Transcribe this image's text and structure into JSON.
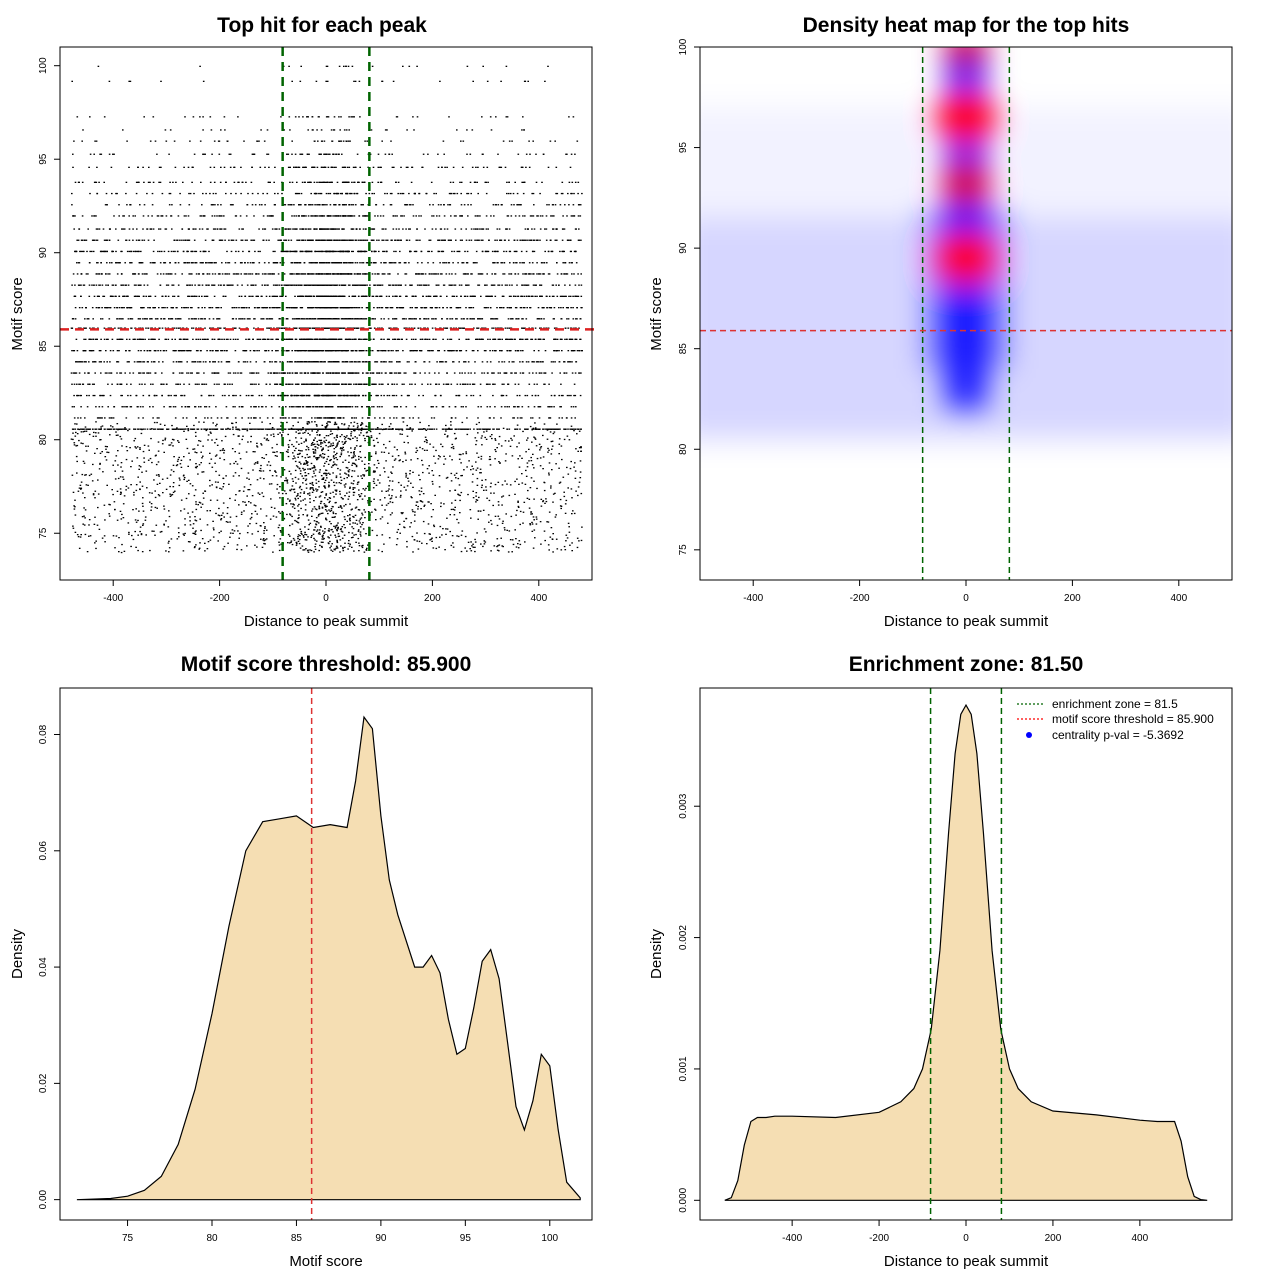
{
  "chart_data": [
    {
      "id": "scatter",
      "type": "scatter",
      "title": "Top hit for each peak",
      "xlabel": "Distance to peak summit",
      "ylabel": "Motif score",
      "xlim": [
        -500,
        500
      ],
      "ylim": [
        72.5,
        101
      ],
      "xticks": [
        -400,
        -200,
        0,
        200,
        400
      ],
      "yticks": [
        75,
        80,
        85,
        90,
        95,
        100
      ],
      "xtick_labels": [
        "-400",
        "-200",
        "0",
        "200",
        "400"
      ],
      "ytick_labels": [
        "75",
        "80",
        "85",
        "90",
        "95",
        "100"
      ],
      "enrichment_zone": [
        -81.5,
        81.5
      ],
      "threshold": 85.9,
      "point_model": {
        "score_bands": [
          100,
          99.2,
          97.3,
          96.6,
          96.0,
          95.3,
          94.6,
          93.8,
          93.2,
          92.6,
          92.0,
          91.3,
          90.7,
          90.1,
          89.5,
          88.9,
          88.3,
          87.7,
          87.1,
          86.5,
          86.0,
          85.4,
          84.8,
          84.2,
          83.6,
          83.0,
          82.4,
          81.8,
          81.2,
          80.6
        ],
        "background_n": 6500,
        "central_n": 2500,
        "central_sd_bp": 45,
        "score_mean": 87,
        "score_sd": 4.5,
        "x_range": [
          -480,
          480
        ]
      }
    },
    {
      "id": "heatmap",
      "type": "heatmap",
      "title": "Density heat map for the top hits",
      "xlabel": "Distance to peak summit",
      "ylabel": "Motif score",
      "xlim": [
        -500,
        500
      ],
      "ylim": [
        73.5,
        100
      ],
      "xticks": [
        -400,
        -200,
        0,
        200,
        400
      ],
      "yticks": [
        75,
        80,
        85,
        90,
        95,
        100
      ],
      "xtick_labels": [
        "-400",
        "-200",
        "0",
        "200",
        "400"
      ],
      "ytick_labels": [
        "75",
        "80",
        "85",
        "90",
        "95",
        "100"
      ],
      "enrichment_zone": [
        -81.5,
        81.5
      ],
      "threshold": 85.9,
      "hotspots": [
        {
          "x": 0,
          "y": 100,
          "intensity": 0.7
        },
        {
          "x": 0,
          "y": 96.5,
          "intensity": 1.0
        },
        {
          "x": 0,
          "y": 93.2,
          "intensity": 0.8
        },
        {
          "x": 0,
          "y": 89.5,
          "intensity": 1.0
        }
      ],
      "colors": {
        "low": "#ffffff",
        "mid": "#0000ff",
        "high": "#ff0000"
      }
    },
    {
      "id": "score_density",
      "type": "area",
      "title": "Motif score threshold: 85.900",
      "xlabel": "Motif score",
      "ylabel": "Density",
      "xlim": [
        71,
        102.5
      ],
      "ylim": [
        -0.0035,
        0.088
      ],
      "xticks": [
        75,
        80,
        85,
        90,
        95,
        100
      ],
      "yticks": [
        0,
        0.02,
        0.04,
        0.06,
        0.08
      ],
      "xtick_labels": [
        "75",
        "80",
        "85",
        "90",
        "95",
        "100"
      ],
      "ytick_labels": [
        "0.00",
        "0.02",
        "0.04",
        "0.06",
        "0.08"
      ],
      "threshold": 85.9,
      "x": [
        72,
        74,
        75,
        76,
        77,
        78,
        79,
        80,
        81,
        82,
        83,
        84,
        85,
        86,
        87,
        88,
        88.5,
        89,
        89.5,
        90,
        90.5,
        91,
        92,
        92.5,
        93,
        93.5,
        94,
        94.5,
        95,
        95.5,
        96,
        96.5,
        97,
        97.5,
        98,
        98.5,
        99,
        99.5,
        100,
        100.5,
        101,
        101.8
      ],
      "y": [
        0,
        0.0002,
        0.0006,
        0.0016,
        0.004,
        0.0095,
        0.019,
        0.032,
        0.047,
        0.06,
        0.065,
        0.0655,
        0.066,
        0.064,
        0.0645,
        0.064,
        0.072,
        0.083,
        0.081,
        0.066,
        0.055,
        0.049,
        0.04,
        0.04,
        0.042,
        0.039,
        0.031,
        0.025,
        0.026,
        0.033,
        0.041,
        0.043,
        0.038,
        0.027,
        0.016,
        0.012,
        0.017,
        0.025,
        0.023,
        0.012,
        0.003,
        0.0003
      ],
      "fill": "#f5deb3"
    },
    {
      "id": "distance_density",
      "type": "area",
      "title": "Enrichment zone: 81.50",
      "xlabel": "Distance to peak summit",
      "ylabel": "Density",
      "xlim": [
        -612,
        612
      ],
      "ylim": [
        -0.00015,
        0.0039
      ],
      "xticks": [
        -400,
        -200,
        0,
        200,
        400
      ],
      "yticks": [
        0,
        0.001,
        0.002,
        0.003
      ],
      "xtick_labels": [
        "-400",
        "-200",
        "0",
        "200",
        "400"
      ],
      "ytick_labels": [
        "0.000",
        "0.001",
        "0.002",
        "0.003"
      ],
      "enrichment_zone": [
        -81.5,
        81.5
      ],
      "x": [
        -555,
        -540,
        -525,
        -510,
        -495,
        -480,
        -460,
        -440,
        -400,
        -300,
        -200,
        -150,
        -120,
        -100,
        -80,
        -60,
        -40,
        -25,
        -12,
        0,
        12,
        25,
        40,
        60,
        80,
        100,
        120,
        150,
        200,
        300,
        400,
        440,
        460,
        480,
        495,
        510,
        525,
        540,
        555
      ],
      "y": [
        0,
        2e-05,
        0.00015,
        0.00042,
        0.0006,
        0.00063,
        0.00063,
        0.00064,
        0.00064,
        0.00063,
        0.00067,
        0.00075,
        0.00085,
        0.001,
        0.0013,
        0.0019,
        0.0028,
        0.0034,
        0.0037,
        0.00377,
        0.0037,
        0.0034,
        0.0028,
        0.0019,
        0.0013,
        0.001,
        0.00085,
        0.00075,
        0.00068,
        0.00065,
        0.00061,
        0.0006,
        0.0006,
        0.0006,
        0.00045,
        0.00018,
        3e-05,
        5e-06,
        0
      ],
      "fill": "#f5deb3",
      "legend": [
        {
          "label": "enrichment zone = 81.5",
          "color": "#006400",
          "kind": "dotted-line"
        },
        {
          "label": "motif score threshold = 85.900",
          "color": "#ff0000",
          "kind": "dotted-line"
        },
        {
          "label": "centrality p-val = -5.3692",
          "color": "#0000ff",
          "kind": "point"
        }
      ]
    }
  ]
}
